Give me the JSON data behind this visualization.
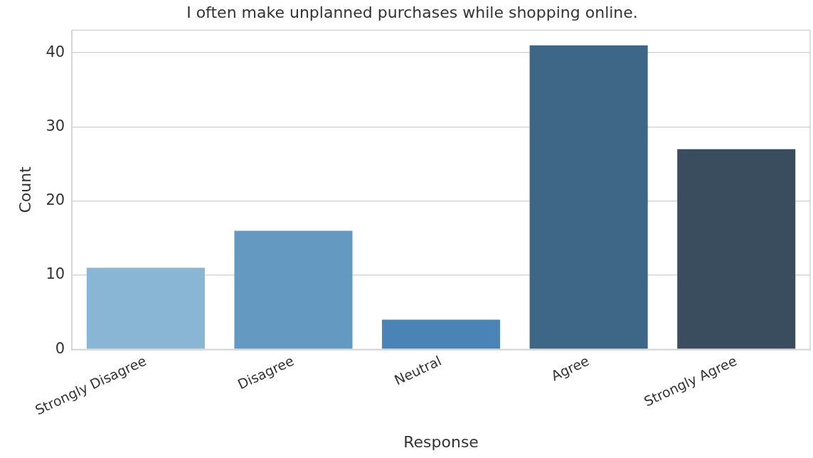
{
  "chart_data": {
    "type": "bar",
    "title": "I often make unplanned purchases while shopping online.",
    "xlabel": "Response",
    "ylabel": "Count",
    "categories": [
      "Strongly Disagree",
      "Disagree",
      "Neutral",
      "Agree",
      "Strongly Agree"
    ],
    "values": [
      11,
      16,
      4,
      41,
      27
    ],
    "colors": [
      "#8ab6d6",
      "#6499c2",
      "#4a84b6",
      "#3d6687",
      "#3a4d5e"
    ],
    "ylim": [
      0,
      43.05
    ],
    "yticks": [
      0,
      10,
      20,
      30,
      40
    ],
    "grid": "y",
    "legend": false
  }
}
